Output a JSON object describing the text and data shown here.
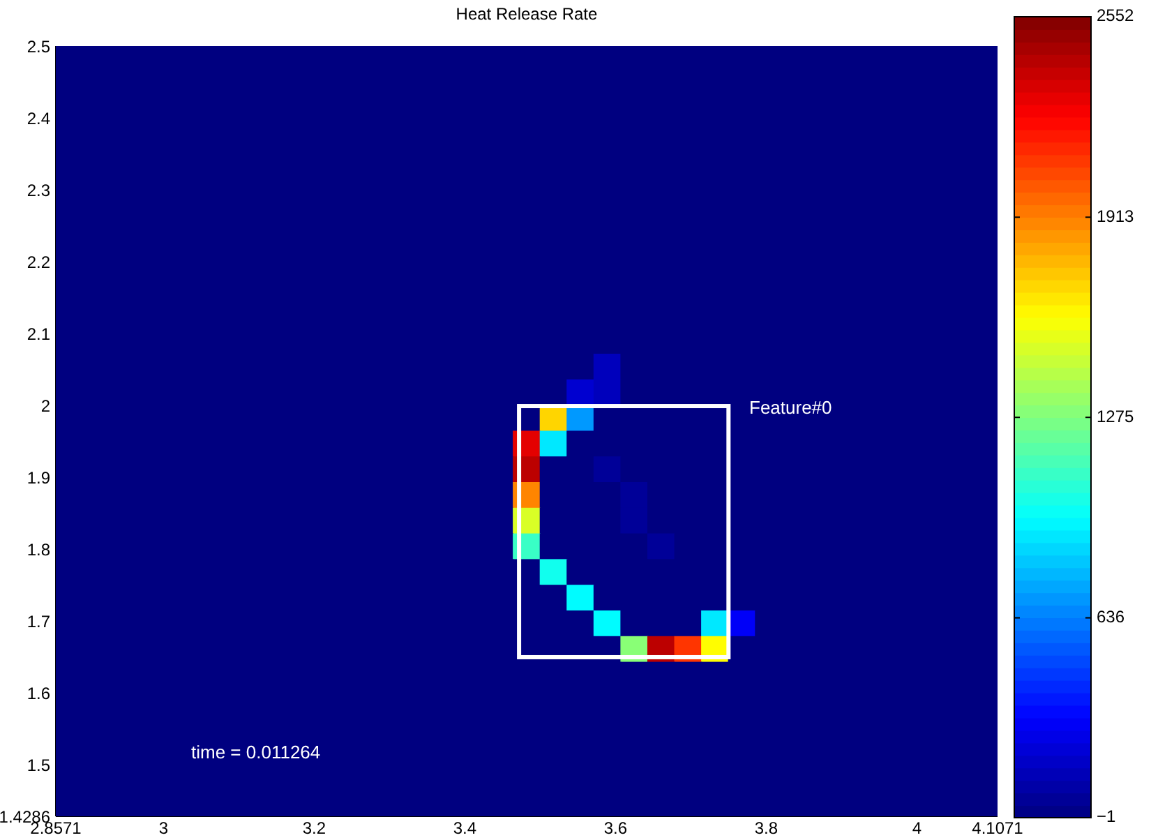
{
  "chart_data": {
    "type": "heatmap",
    "title": "Heat Release Rate",
    "xlim": [
      2.8571,
      4.1071
    ],
    "ylim": [
      1.4286,
      2.5
    ],
    "xticks": [
      2.8571,
      3,
      3.2,
      3.4,
      3.6,
      3.8,
      4,
      4.1071
    ],
    "yticks": [
      1.4286,
      1.5,
      1.6,
      1.7,
      1.8,
      1.9,
      2,
      2.1,
      2.2,
      2.3,
      2.4,
      2.5
    ],
    "clim": [
      -1,
      2552
    ],
    "cticks": [
      {
        "value": -1,
        "label": "−1"
      },
      636,
      1275,
      1913,
      2552
    ],
    "annotations": [
      "Feature#0",
      "time = 0.011264"
    ],
    "cells": [
      [
        0,
        0,
        0,
        0,
        0,
        0,
        0,
        0,
        0,
        0,
        0,
        0,
        0,
        0,
        0,
        0,
        0,
        0,
        0,
        0,
        0,
        0,
        0,
        0,
        0,
        0,
        0,
        0,
        0,
        0,
        0,
        0,
        0,
        0,
        0
      ],
      [
        0,
        0,
        0,
        0,
        0,
        0,
        0,
        0,
        0,
        0,
        0,
        0,
        0,
        0,
        0,
        0,
        0,
        0,
        0,
        0,
        0,
        0,
        0,
        0,
        0,
        0,
        0,
        0,
        0,
        0,
        0,
        0,
        0,
        0,
        0
      ],
      [
        0,
        0,
        0,
        0,
        0,
        0,
        0,
        0,
        0,
        0,
        0,
        0,
        0,
        0,
        0,
        0,
        0,
        0,
        0,
        0,
        0,
        0,
        0,
        0,
        0,
        0,
        0,
        0,
        0,
        0,
        0,
        0,
        0,
        0,
        0
      ],
      [
        0,
        0,
        0,
        0,
        0,
        0,
        0,
        0,
        0,
        0,
        0,
        0,
        0,
        0,
        0,
        0,
        0,
        0,
        0,
        0,
        0,
        0,
        0,
        0,
        0,
        0,
        0,
        0,
        0,
        0,
        0,
        0,
        0,
        0,
        0
      ],
      [
        0,
        0,
        0,
        0,
        0,
        0,
        0,
        0,
        0,
        0,
        0,
        0,
        0,
        0,
        0,
        0,
        0,
        0,
        0,
        0,
        0,
        0,
        0,
        0,
        0,
        0,
        0,
        0,
        0,
        0,
        0,
        0,
        0,
        0,
        0
      ],
      [
        0,
        0,
        0,
        0,
        0,
        0,
        0,
        0,
        0,
        0,
        0,
        0,
        0,
        0,
        0,
        0,
        0,
        0,
        0,
        0,
        0,
        0,
        0,
        0,
        0,
        0,
        0,
        0,
        0,
        0,
        0,
        0,
        0,
        0,
        0
      ],
      [
        0,
        0,
        0,
        0,
        0,
        0,
        0,
        0,
        0,
        0,
        0,
        0,
        0,
        0,
        0,
        0,
        0,
        0,
        0,
        0,
        0,
        0,
        0,
        0,
        0,
        0,
        0,
        0,
        0,
        0,
        0,
        0,
        0,
        0,
        0
      ],
      [
        0,
        0,
        0,
        0,
        0,
        0,
        0,
        0,
        0,
        0,
        0,
        0,
        0,
        0,
        0,
        0,
        0,
        0,
        0,
        0,
        0,
        0,
        0,
        0,
        0,
        0,
        0,
        0,
        0,
        0,
        0,
        0,
        0,
        0,
        0
      ],
      [
        0,
        0,
        0,
        0,
        0,
        0,
        0,
        0,
        0,
        0,
        0,
        0,
        0,
        0,
        0,
        0,
        0,
        0,
        0,
        0,
        0,
        0,
        0,
        0,
        0,
        0,
        0,
        0,
        0,
        0,
        0,
        0,
        0,
        0,
        0
      ],
      [
        0,
        0,
        0,
        0,
        0,
        0,
        0,
        0,
        0,
        0,
        0,
        0,
        0,
        0,
        0,
        0,
        0,
        0,
        0,
        0,
        0,
        0,
        0,
        0,
        0,
        0,
        0,
        0,
        0,
        0,
        0,
        0,
        0,
        0,
        0
      ],
      [
        0,
        0,
        0,
        0,
        0,
        0,
        0,
        0,
        0,
        0,
        0,
        0,
        0,
        0,
        0,
        0,
        0,
        0,
        0,
        0,
        0,
        0,
        0,
        0,
        0,
        0,
        0,
        0,
        0,
        0,
        0,
        0,
        0,
        0,
        0
      ],
      [
        0,
        0,
        0,
        0,
        0,
        0,
        0,
        0,
        0,
        0,
        0,
        0,
        0,
        0,
        0,
        0,
        0,
        0,
        0,
        0,
        0,
        0,
        0,
        0,
        0,
        0,
        0,
        0,
        0,
        0,
        0,
        0,
        0,
        0,
        0
      ],
      [
        0,
        0,
        0,
        0,
        0,
        0,
        0,
        0,
        0,
        0,
        0,
        0,
        0,
        0,
        0,
        0,
        0,
        0,
        0,
        0,
        150,
        0,
        0,
        0,
        0,
        0,
        0,
        0,
        0,
        0,
        0,
        0,
        0,
        0,
        0
      ],
      [
        0,
        0,
        0,
        0,
        0,
        0,
        0,
        0,
        0,
        0,
        0,
        0,
        0,
        0,
        0,
        0,
        0,
        0,
        0,
        200,
        150,
        0,
        0,
        0,
        0,
        0,
        0,
        0,
        0,
        0,
        0,
        0,
        0,
        0,
        0
      ],
      [
        0,
        0,
        0,
        0,
        0,
        0,
        0,
        0,
        0,
        0,
        0,
        0,
        0,
        0,
        0,
        0,
        0,
        0,
        1700,
        700,
        0,
        0,
        0,
        0,
        0,
        0,
        0,
        0,
        0,
        0,
        0,
        0,
        0,
        0,
        0
      ],
      [
        0,
        0,
        0,
        0,
        0,
        0,
        0,
        0,
        0,
        0,
        0,
        0,
        0,
        0,
        0,
        0,
        0,
        2300,
        900,
        0,
        0,
        0,
        0,
        0,
        0,
        0,
        0,
        0,
        0,
        0,
        0,
        0,
        0,
        0,
        0
      ],
      [
        0,
        0,
        0,
        0,
        0,
        0,
        0,
        0,
        0,
        0,
        0,
        0,
        0,
        0,
        0,
        0,
        0,
        2400,
        0,
        0,
        60,
        0,
        0,
        0,
        0,
        0,
        0,
        0,
        0,
        0,
        0,
        0,
        0,
        0,
        0
      ],
      [
        0,
        0,
        0,
        0,
        0,
        0,
        0,
        0,
        0,
        0,
        0,
        0,
        0,
        0,
        0,
        0,
        0,
        1900,
        0,
        0,
        0,
        60,
        0,
        0,
        0,
        0,
        0,
        0,
        0,
        0,
        0,
        0,
        0,
        0,
        0
      ],
      [
        0,
        0,
        0,
        0,
        0,
        0,
        0,
        0,
        0,
        0,
        0,
        0,
        0,
        0,
        0,
        0,
        0,
        1500,
        0,
        0,
        0,
        60,
        0,
        0,
        0,
        0,
        0,
        0,
        0,
        0,
        0,
        0,
        0,
        0,
        0
      ],
      [
        0,
        0,
        0,
        0,
        0,
        0,
        0,
        0,
        0,
        0,
        0,
        0,
        0,
        0,
        0,
        0,
        0,
        1100,
        0,
        0,
        0,
        0,
        60,
        0,
        0,
        0,
        0,
        0,
        0,
        0,
        0,
        0,
        0,
        0,
        0
      ],
      [
        0,
        0,
        0,
        0,
        0,
        0,
        0,
        0,
        0,
        0,
        0,
        0,
        0,
        0,
        0,
        0,
        0,
        0,
        1000,
        0,
        0,
        0,
        0,
        0,
        0,
        0,
        0,
        0,
        0,
        0,
        0,
        0,
        0,
        0,
        0
      ],
      [
        0,
        0,
        0,
        0,
        0,
        0,
        0,
        0,
        0,
        0,
        0,
        0,
        0,
        0,
        0,
        0,
        0,
        0,
        0,
        950,
        0,
        0,
        0,
        0,
        0,
        0,
        0,
        0,
        0,
        0,
        0,
        0,
        0,
        0,
        0
      ],
      [
        0,
        0,
        0,
        0,
        0,
        0,
        0,
        0,
        0,
        0,
        0,
        0,
        0,
        0,
        0,
        0,
        0,
        0,
        0,
        0,
        950,
        0,
        0,
        0,
        900,
        300,
        0,
        0,
        0,
        0,
        0,
        0,
        0,
        0,
        0
      ],
      [
        0,
        0,
        0,
        0,
        0,
        0,
        0,
        0,
        0,
        0,
        0,
        0,
        0,
        0,
        0,
        0,
        0,
        0,
        0,
        0,
        0,
        1300,
        2400,
        2100,
        1600,
        0,
        0,
        0,
        0,
        0,
        0,
        0,
        0,
        0,
        0
      ],
      [
        0,
        0,
        0,
        0,
        0,
        0,
        0,
        0,
        0,
        0,
        0,
        0,
        0,
        0,
        0,
        0,
        0,
        0,
        0,
        0,
        0,
        0,
        0,
        0,
        0,
        0,
        0,
        0,
        0,
        0,
        0,
        0,
        0,
        0,
        0
      ],
      [
        0,
        0,
        0,
        0,
        0,
        0,
        0,
        0,
        0,
        0,
        0,
        0,
        0,
        0,
        0,
        0,
        0,
        0,
        0,
        0,
        0,
        0,
        0,
        0,
        0,
        0,
        0,
        0,
        0,
        0,
        0,
        0,
        0,
        0,
        0
      ],
      [
        0,
        0,
        0,
        0,
        0,
        0,
        0,
        0,
        0,
        0,
        0,
        0,
        0,
        0,
        0,
        0,
        0,
        0,
        0,
        0,
        0,
        0,
        0,
        0,
        0,
        0,
        0,
        0,
        0,
        0,
        0,
        0,
        0,
        0,
        0
      ],
      [
        0,
        0,
        0,
        0,
        0,
        0,
        0,
        0,
        0,
        0,
        0,
        0,
        0,
        0,
        0,
        0,
        0,
        0,
        0,
        0,
        0,
        0,
        0,
        0,
        0,
        0,
        0,
        0,
        0,
        0,
        0,
        0,
        0,
        0,
        0
      ],
      [
        0,
        0,
        0,
        0,
        0,
        0,
        0,
        0,
        0,
        0,
        0,
        0,
        0,
        0,
        0,
        0,
        0,
        0,
        0,
        0,
        0,
        0,
        0,
        0,
        0,
        0,
        0,
        0,
        0,
        0,
        0,
        0,
        0,
        0,
        0
      ],
      [
        0,
        0,
        0,
        0,
        0,
        0,
        0,
        0,
        0,
        0,
        0,
        0,
        0,
        0,
        0,
        0,
        0,
        0,
        0,
        0,
        0,
        0,
        0,
        0,
        0,
        0,
        0,
        0,
        0,
        0,
        0,
        0,
        0,
        0,
        0
      ]
    ]
  }
}
